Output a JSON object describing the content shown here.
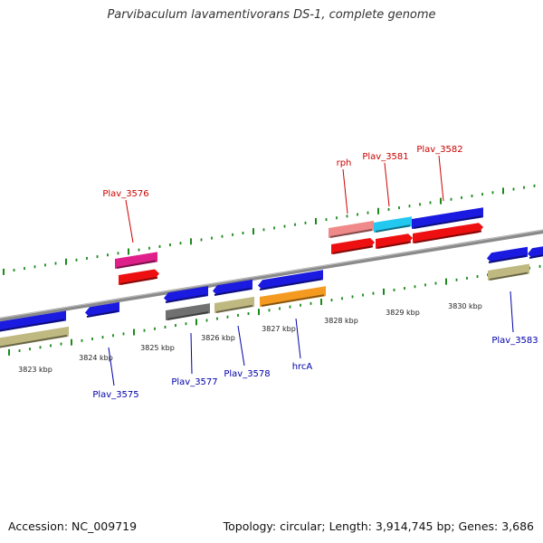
{
  "header": {
    "title": "Parvibaculum lavamentivorans DS-1, complete genome"
  },
  "footer": {
    "accession": "Accession: NC_009719",
    "topology": "Topology: circular; Length: 3,914,745 bp; Genes: 3,686"
  },
  "colors": {
    "backbone": "#8a8a8a",
    "tick": "#1a8a1a",
    "label_forward": "#cc0000",
    "label_reverse": "#0000aa",
    "kbp_label": "#222222"
  },
  "axis": {
    "ticks_kbp": [
      "3823 kbp",
      "3824 kbp",
      "3825 kbp",
      "3826 kbp",
      "3827 kbp",
      "3828 kbp",
      "3829 kbp",
      "3830 kbp"
    ]
  },
  "gene_labels": [
    {
      "name": "Plav_3575",
      "strand": "reverse"
    },
    {
      "name": "Plav_3576",
      "strand": "forward"
    },
    {
      "name": "Plav_3577",
      "strand": "reverse"
    },
    {
      "name": "Plav_3578",
      "strand": "reverse"
    },
    {
      "name": "hrcA",
      "strand": "reverse"
    },
    {
      "name": "rph",
      "strand": "forward"
    },
    {
      "name": "Plav_3581",
      "strand": "forward"
    },
    {
      "name": "Plav_3582",
      "strand": "forward"
    },
    {
      "name": "Plav_3583",
      "strand": "reverse"
    }
  ],
  "features": {
    "forward_genes": [
      {
        "color": "#e0208a"
      },
      {
        "color": "#f08a8a"
      },
      {
        "color": "#22c8f0"
      },
      {
        "color": "#1a1ae0"
      }
    ],
    "forward_cds": [
      {
        "color": "#ee1010"
      },
      {
        "color": "#ee1010"
      },
      {
        "color": "#ee1010"
      },
      {
        "color": "#ee1010"
      }
    ],
    "reverse_genes": [
      {
        "color": "#1a1ae0"
      },
      {
        "color": "#1a1ae0"
      },
      {
        "color": "#1a1ae0"
      },
      {
        "color": "#1a1ae0"
      },
      {
        "color": "#1a1ae0"
      },
      {
        "color": "#1a1ae0"
      },
      {
        "color": "#1a1ae0"
      }
    ],
    "reverse_cds": [
      {
        "color": "#bfb880"
      },
      {
        "color": "#707070"
      },
      {
        "color": "#bfb880"
      },
      {
        "color": "#f59a20"
      },
      {
        "color": "#bfb880"
      }
    ]
  }
}
